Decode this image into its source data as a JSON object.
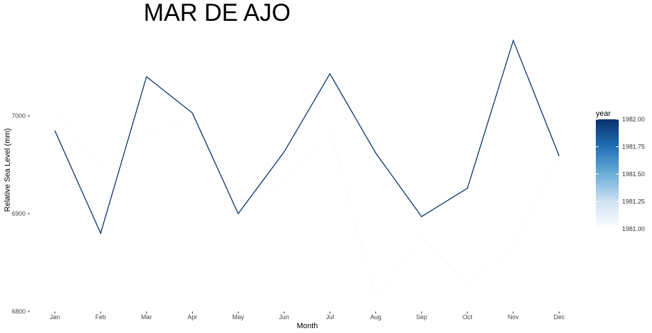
{
  "chart_data": {
    "type": "line",
    "title": "MAR DE AJO",
    "xlabel": "Month",
    "ylabel": "Relative Sea Level (mm)",
    "categories": [
      "Jan",
      "Feb",
      "Mar",
      "Apr",
      "May",
      "Jun",
      "Jul",
      "Aug",
      "Sep",
      "Oct",
      "Nov",
      "Dec"
    ],
    "yticks": [
      6800,
      6900,
      7000
    ],
    "ylim": [
      6800,
      7100
    ],
    "grid": false,
    "legend_position": "right",
    "color_scale": {
      "title": "year",
      "min": 1981,
      "max": 1982,
      "low_color": "#ffffff",
      "high_color": "#08306b",
      "ticks": [
        "1982.00",
        "1981.75",
        "1981.50",
        "1981.25",
        "1981.00"
      ]
    },
    "series": [
      {
        "year": 1981,
        "color": "#f7fbff",
        "values": [
          7004,
          6950,
          6982,
          6997,
          6913,
          6931,
          6986,
          6814,
          6876,
          6828,
          6866,
          6963
        ]
      },
      {
        "year": 1982,
        "color": "#08306b",
        "values": [
          6985,
          6880,
          7040,
          7003,
          6900,
          6963,
          7043,
          6962,
          6897,
          6926,
          7077,
          6959
        ]
      }
    ]
  }
}
